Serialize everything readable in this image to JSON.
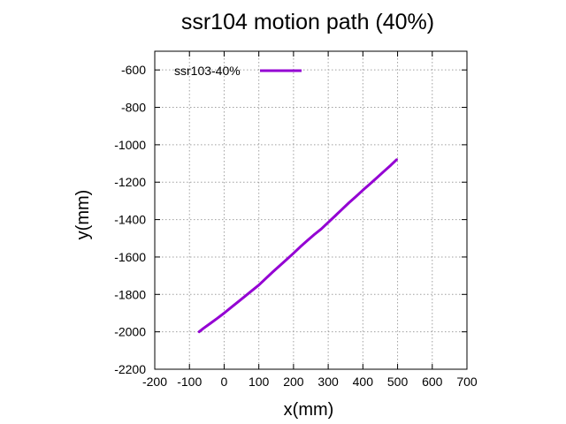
{
  "chart_data": {
    "type": "line",
    "title": "ssr104 motion path (40%)",
    "xlabel": "x(mm)",
    "ylabel": "y(mm)",
    "xlim": [
      -200,
      700
    ],
    "ylim": [
      -2200,
      -500
    ],
    "xticks": [
      -200,
      -100,
      0,
      100,
      200,
      300,
      400,
      500,
      600,
      700
    ],
    "yticks": [
      -2200,
      -2000,
      -1800,
      -1600,
      -1400,
      -1200,
      -1000,
      -800,
      -600
    ],
    "grid": true,
    "legend_position": "top-left",
    "series": [
      {
        "name": "ssr103-40%",
        "color": "#9400d3",
        "x": [
          -72,
          -60,
          -40,
          -20,
          0,
          20,
          40,
          60,
          80,
          100,
          120,
          140,
          160,
          180,
          200,
          220,
          240,
          260,
          280,
          300,
          320,
          340,
          360,
          380,
          400,
          420,
          440,
          460,
          480,
          497
        ],
        "y": [
          -2000,
          -1982,
          -1955,
          -1928,
          -1900,
          -1870,
          -1840,
          -1810,
          -1780,
          -1750,
          -1715,
          -1680,
          -1647,
          -1614,
          -1580,
          -1545,
          -1512,
          -1480,
          -1450,
          -1415,
          -1380,
          -1345,
          -1310,
          -1277,
          -1243,
          -1210,
          -1177,
          -1143,
          -1110,
          -1080
        ]
      }
    ]
  }
}
